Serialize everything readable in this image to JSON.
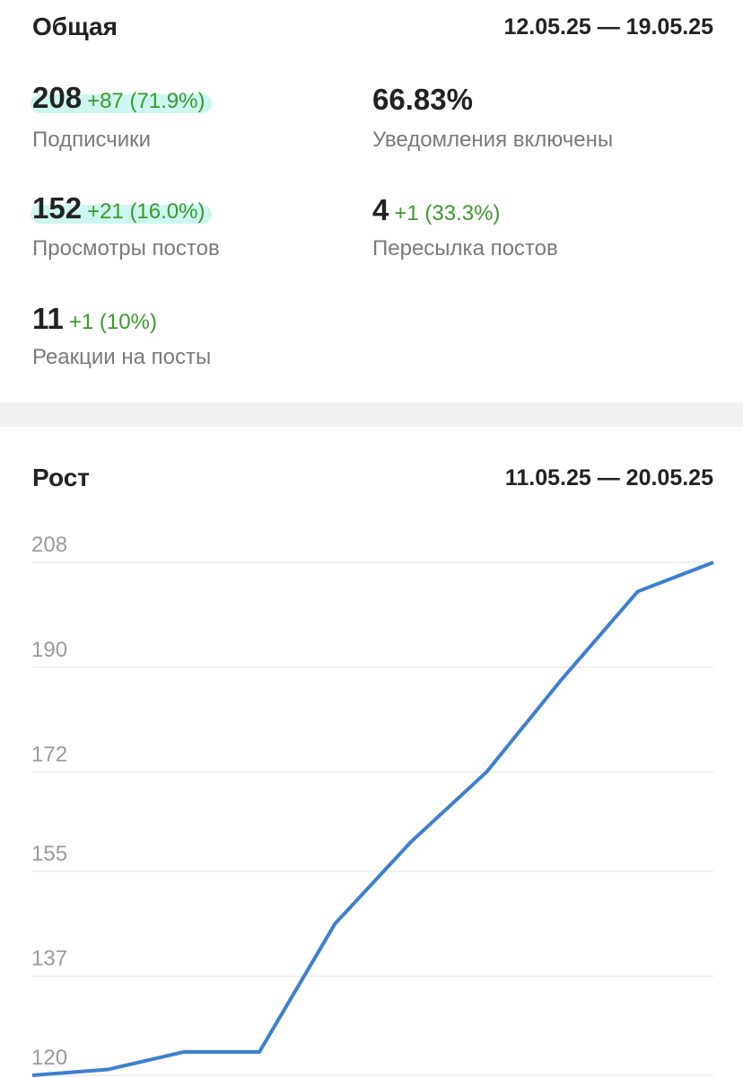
{
  "overview": {
    "title": "Общая",
    "period": "12.05.25 — 19.05.25",
    "stats": [
      {
        "value": "208",
        "change": "+87 (71.9%)",
        "label": "Подписчики"
      },
      {
        "value": "66.83%",
        "label": "Уведомления включены"
      },
      {
        "value": "152",
        "change": "+21 (16.0%)",
        "label": "Просмотры постов"
      },
      {
        "value": "4",
        "change": "+1 (33.3%)",
        "label": "Пересылка постов"
      },
      {
        "value": "11",
        "change": "+1 (10%)",
        "label": "Реакции на посты"
      }
    ]
  },
  "chart_data": {
    "type": "line",
    "title": "Рост",
    "subtitle": "11.05.25 — 20.05.25",
    "categories": [
      null,
      null,
      null,
      null,
      null,
      null,
      null,
      null,
      null,
      null
    ],
    "series": [
      {
        "name": null,
        "color": "#3d7fd1",
        "values": [
          120,
          121,
          124,
          124,
          146,
          160,
          172,
          188,
          203,
          208
        ]
      }
    ],
    "ylim": [
      120,
      208
    ],
    "yticks": [
      120,
      137,
      155,
      172,
      190,
      208
    ],
    "grid": true
  }
}
